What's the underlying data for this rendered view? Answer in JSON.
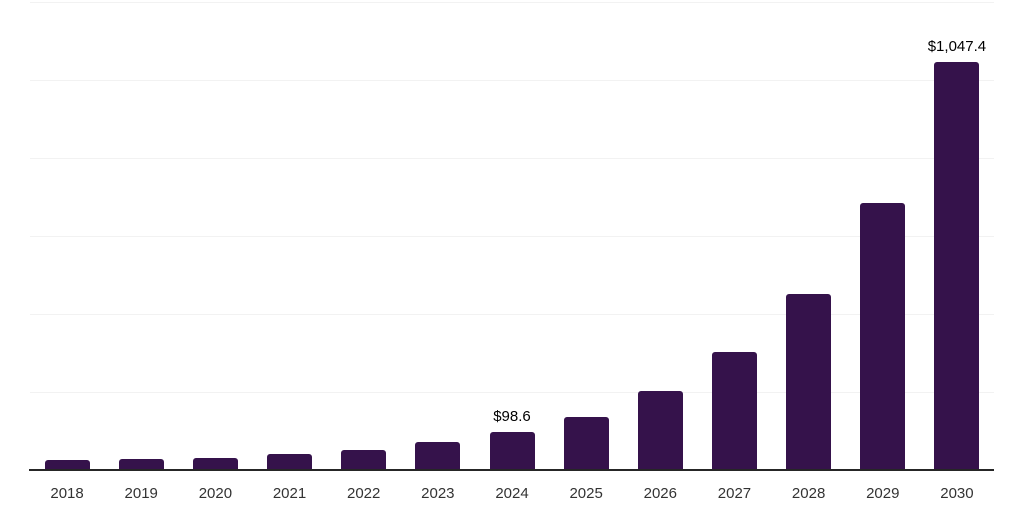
{
  "chart_data": {
    "type": "bar",
    "title": "",
    "xlabel": "",
    "ylabel": "",
    "categories": [
      "2018",
      "2019",
      "2020",
      "2021",
      "2022",
      "2023",
      "2024",
      "2025",
      "2026",
      "2027",
      "2028",
      "2029",
      "2030"
    ],
    "values": [
      24.6,
      28.9,
      30.1,
      40.0,
      51.2,
      71.7,
      98.6,
      135.7,
      203.8,
      302.9,
      450.6,
      685.2,
      1047.4
    ],
    "data_labels": {
      "2024": "$98.6",
      "2030": "$1,047.4"
    },
    "ylim": [
      0,
      1200
    ],
    "grid_step": 200,
    "grid": true,
    "legend": false,
    "y_axis_tick_labels_visible": false,
    "colors": {
      "bar": "#35124B",
      "gridline": "#F2F2F2",
      "axis_line": "#262626",
      "tick_label": "#333333",
      "data_label": "#000000",
      "background": "#FFFFFF"
    }
  }
}
